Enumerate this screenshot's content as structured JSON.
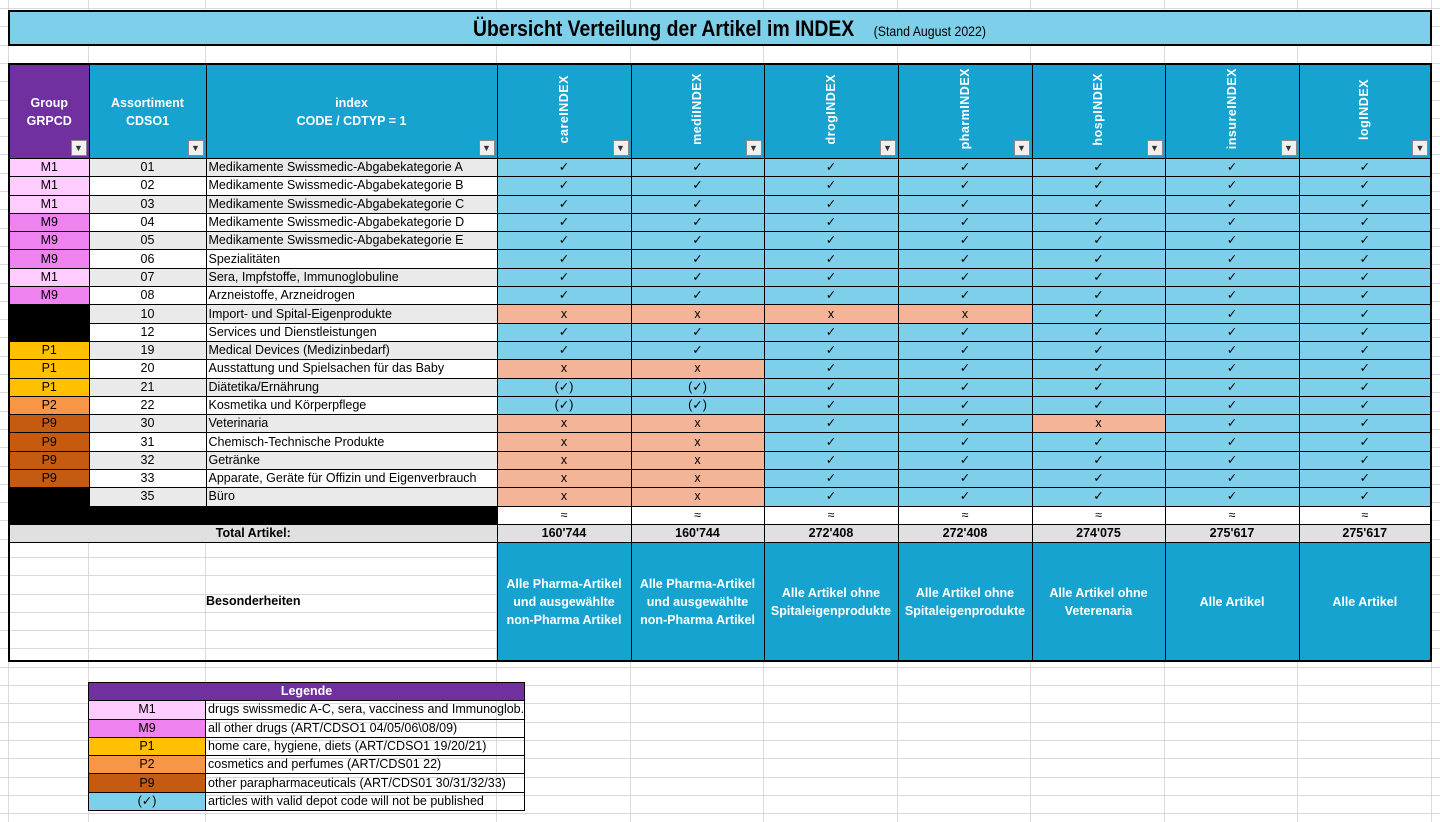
{
  "title": {
    "main": "Übersicht Verteilung der Artikel im INDEX",
    "sub": " (Stand August 2022)"
  },
  "header": {
    "group": [
      "Group",
      "GRPCD"
    ],
    "assortiment": [
      "Assortiment",
      "CDSO1"
    ],
    "index": [
      "index",
      "CODE / CDTYP = 1"
    ],
    "indexes": [
      "careINDEX",
      "mediINDEX",
      "drogINDEX",
      "pharmINDEX",
      "hospINDEX",
      "insureINDEX",
      "logINDEX"
    ]
  },
  "colors": {
    "M1": "#ffccff",
    "M9": "#ee82ee",
    "P1": "#ffc000",
    "P2": "#f79646",
    "P9": "#c55a11",
    "none": "#000000",
    "available": "#7ecfe9",
    "not_available": "#f4b498",
    "header": "#17a3cf",
    "group_header": "#7030a0"
  },
  "symbols": {
    "yes": "✓",
    "no": "x",
    "partial": "(✓)",
    "approx": "≈"
  },
  "rows": [
    {
      "group": "M1",
      "code": "01",
      "desc": "Medikamente Swissmedic-Abgabekategorie A",
      "marks": [
        "✓",
        "✓",
        "✓",
        "✓",
        "✓",
        "✓",
        "✓"
      ]
    },
    {
      "group": "M1",
      "code": "02",
      "desc": "Medikamente Swissmedic-Abgabekategorie B",
      "marks": [
        "✓",
        "✓",
        "✓",
        "✓",
        "✓",
        "✓",
        "✓"
      ]
    },
    {
      "group": "M1",
      "code": "03",
      "desc": "Medikamente Swissmedic-Abgabekategorie C",
      "marks": [
        "✓",
        "✓",
        "✓",
        "✓",
        "✓",
        "✓",
        "✓"
      ]
    },
    {
      "group": "M9",
      "code": "04",
      "desc": "Medikamente Swissmedic-Abgabekategorie D",
      "marks": [
        "✓",
        "✓",
        "✓",
        "✓",
        "✓",
        "✓",
        "✓"
      ]
    },
    {
      "group": "M9",
      "code": "05",
      "desc": "Medikamente Swissmedic-Abgabekategorie E",
      "marks": [
        "✓",
        "✓",
        "✓",
        "✓",
        "✓",
        "✓",
        "✓"
      ]
    },
    {
      "group": "M9",
      "code": "06",
      "desc": "Spezialitäten",
      "marks": [
        "✓",
        "✓",
        "✓",
        "✓",
        "✓",
        "✓",
        "✓"
      ]
    },
    {
      "group": "M1",
      "code": "07",
      "desc": "Sera, Impfstoffe, Immunoglobuline",
      "marks": [
        "✓",
        "✓",
        "✓",
        "✓",
        "✓",
        "✓",
        "✓"
      ]
    },
    {
      "group": "M9",
      "code": "08",
      "desc": "Arzneistoffe, Arzneidrogen",
      "marks": [
        "✓",
        "✓",
        "✓",
        "✓",
        "✓",
        "✓",
        "✓"
      ]
    },
    {
      "group": "",
      "code": "10",
      "desc": "Import- und Spital-Eigenprodukte",
      "marks": [
        "x",
        "x",
        "x",
        "x",
        "✓",
        "✓",
        "✓"
      ]
    },
    {
      "group": "",
      "code": "12",
      "desc": "Services und Dienstleistungen",
      "marks": [
        "✓",
        "✓",
        "✓",
        "✓",
        "✓",
        "✓",
        "✓"
      ]
    },
    {
      "group": "P1",
      "code": "19",
      "desc": "Medical Devices (Medizinbedarf)",
      "marks": [
        "✓",
        "✓",
        "✓",
        "✓",
        "✓",
        "✓",
        "✓"
      ]
    },
    {
      "group": "P1",
      "code": "20",
      "desc": "Ausstattung und Spielsachen für das Baby",
      "marks": [
        "x",
        "x",
        "✓",
        "✓",
        "✓",
        "✓",
        "✓"
      ]
    },
    {
      "group": "P1",
      "code": "21",
      "desc": "Diätetika/Ernährung",
      "marks": [
        "(✓)",
        "(✓)",
        "✓",
        "✓",
        "✓",
        "✓",
        "✓"
      ]
    },
    {
      "group": "P2",
      "code": "22",
      "desc": "Kosmetika und Körperpflege",
      "marks": [
        "(✓)",
        "(✓)",
        "✓",
        "✓",
        "✓",
        "✓",
        "✓"
      ]
    },
    {
      "group": "P9",
      "code": "30",
      "desc": "Veterinaria",
      "marks": [
        "x",
        "x",
        "✓",
        "✓",
        "x",
        "✓",
        "✓"
      ]
    },
    {
      "group": "P9",
      "code": "31",
      "desc": "Chemisch-Technische Produkte",
      "marks": [
        "x",
        "x",
        "✓",
        "✓",
        "✓",
        "✓",
        "✓"
      ]
    },
    {
      "group": "P9",
      "code": "32",
      "desc": "Getränke",
      "marks": [
        "x",
        "x",
        "✓",
        "✓",
        "✓",
        "✓",
        "✓"
      ]
    },
    {
      "group": "P9",
      "code": "33",
      "desc": "Apparate, Geräte für Offizin und Eigenverbrauch",
      "marks": [
        "x",
        "x",
        "✓",
        "✓",
        "✓",
        "✓",
        "✓"
      ]
    },
    {
      "group": "",
      "code": "35",
      "desc": "Büro",
      "marks": [
        "x",
        "x",
        "✓",
        "✓",
        "✓",
        "✓",
        "✓"
      ]
    }
  ],
  "approx_row": [
    "≈",
    "≈",
    "≈",
    "≈",
    "≈",
    "≈",
    "≈"
  ],
  "totals": {
    "label": "Total Artikel:",
    "values": [
      "160'744",
      "160'744",
      "272'408",
      "272'408",
      "274'075",
      "275'617",
      "275'617"
    ]
  },
  "notes": {
    "label": "Besonderheiten",
    "values": [
      "Alle Pharma-Artikel und ausgewählte non-Pharma Artikel",
      "Alle Pharma-Artikel und ausgewählte non-Pharma Artikel",
      "Alle Artikel ohne Spitaleigenprodukte",
      "Alle Artikel ohne Spitaleigenprodukte",
      "Alle Artikel ohne Veterenaria",
      "Alle Artikel",
      "Alle Artikel"
    ]
  },
  "legend": {
    "title": "Legende",
    "items": [
      {
        "key": "M1",
        "text": "drugs swissmedic A-C, sera, vacciness and Immunoglob."
      },
      {
        "key": "M9",
        "text": "all other drugs (ART/CDSO1 04/05/06\\08/09)"
      },
      {
        "key": "P1",
        "text": "home care, hygiene, diets (ART/CDSO1 19/20/21)"
      },
      {
        "key": "P2",
        "text": "cosmetics and perfumes (ART/CDS01 22)"
      },
      {
        "key": "P9",
        "text": "other parapharmaceuticals (ART/CDS01 30/31/32/33)"
      },
      {
        "key": "(✓)",
        "text": "articles with valid depot code will not be published"
      }
    ]
  }
}
